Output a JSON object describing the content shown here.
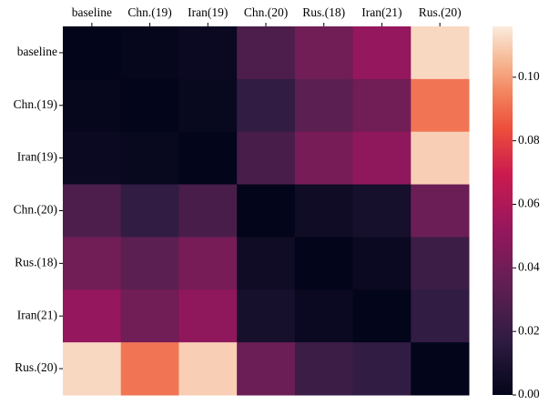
{
  "chart_data": {
    "type": "heatmap",
    "categories": [
      "baseline",
      "Chn.(19)",
      "Iran(19)",
      "Chn.(20)",
      "Rus.(18)",
      "Iran(21)",
      "Rus.(20)"
    ],
    "values": [
      [
        0,
        0.001,
        0.003,
        0.028,
        0.04,
        0.052,
        0.112
      ],
      [
        0.001,
        0,
        0.002,
        0.018,
        0.033,
        0.04,
        0.092
      ],
      [
        0.003,
        0.002,
        0,
        0.026,
        0.042,
        0.05,
        0.11
      ],
      [
        0.028,
        0.018,
        0.026,
        0,
        0.005,
        0.008,
        0.038
      ],
      [
        0.04,
        0.033,
        0.042,
        0.005,
        0,
        0.003,
        0.022
      ],
      [
        0.052,
        0.04,
        0.05,
        0.008,
        0.003,
        0,
        0.018
      ],
      [
        0.112,
        0.092,
        0.11,
        0.038,
        0.022,
        0.018,
        0
      ]
    ],
    "colorbar_lim": [
      0,
      0.116
    ],
    "colorbar_ticks": [
      {
        "value": 0,
        "label": "0.00"
      },
      0.02,
      0.04,
      0.06,
      0.08,
      {
        "value": 0.1,
        "label": "0.10"
      }
    ],
    "colorscale": [
      [
        0,
        "#03051a"
      ],
      [
        0.15,
        "#2f1c42"
      ],
      [
        0.3,
        "#611f53"
      ],
      [
        0.45,
        "#96175d"
      ],
      [
        0.6,
        "#cb1b4f"
      ],
      [
        0.72,
        "#ec4d3b"
      ],
      [
        0.82,
        "#f3845e"
      ],
      [
        0.9,
        "#f6b48f"
      ],
      [
        1,
        "#faebdd"
      ]
    ]
  }
}
